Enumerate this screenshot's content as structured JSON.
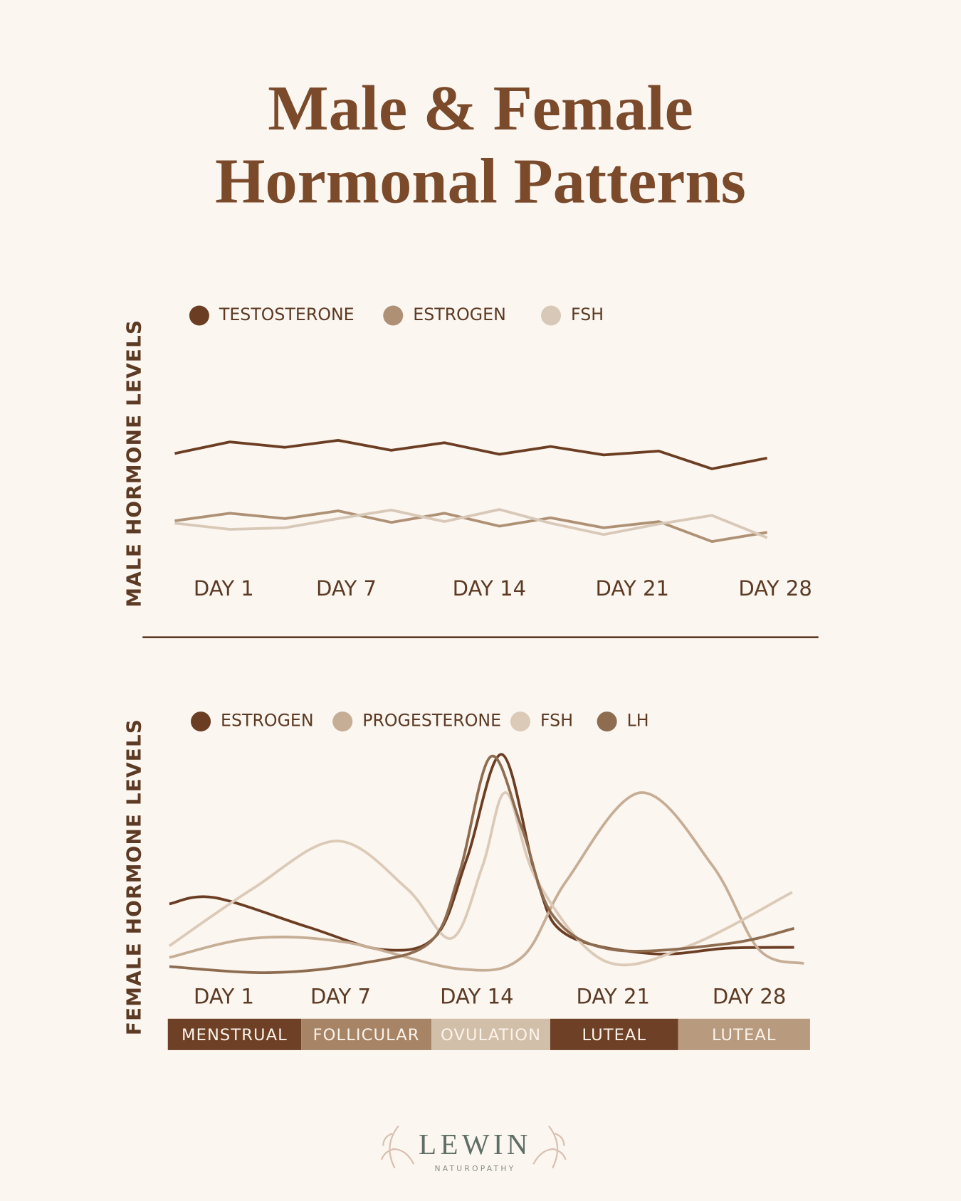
{
  "title": [
    "Male & Female",
    "Hormonal Patterns"
  ],
  "chart_data": [
    {
      "type": "line",
      "y_label": "MALE HORMONE LEVELS",
      "smooth": false,
      "xlim": [
        -1.4,
        28.5
      ],
      "ylim": [
        0,
        100
      ],
      "xticks": [
        {
          "value": 1,
          "label": "DAY 1"
        },
        {
          "value": 7,
          "label": "DAY 7"
        },
        {
          "value": 14,
          "label": "DAY 14"
        },
        {
          "value": 21,
          "label": "DAY 21"
        },
        {
          "value": 28,
          "label": "DAY 28"
        }
      ],
      "x": [
        -1.4,
        1.3,
        4,
        6.6,
        9.2,
        11.8,
        14.5,
        17,
        19.6,
        22.3,
        24.9,
        27.6
      ],
      "series": [
        {
          "name": "TESTOSTERONE",
          "color": "#6b3d22",
          "values": [
            56.9,
            62.7,
            60,
            63.5,
            58.5,
            62.3,
            56.5,
            60.4,
            56.2,
            58.1,
            49.2,
            54.6
          ]
        },
        {
          "name": "ESTROGEN",
          "color": "#ae9175",
          "values": [
            23.1,
            26.9,
            24.2,
            28.1,
            22.3,
            26.9,
            20.4,
            24.6,
            19.6,
            22.7,
            12.7,
            17.3
          ]
        },
        {
          "name": "FSH",
          "color": "#d8c8b8",
          "values": [
            21.9,
            18.8,
            19.6,
            24.2,
            28.5,
            22.7,
            28.8,
            21.9,
            16.2,
            21.5,
            25.8,
            14.6
          ]
        }
      ]
    },
    {
      "type": "line",
      "y_label": "FEMALE HORMONE LEVELS",
      "smooth": true,
      "xlim": [
        -1.8,
        31
      ],
      "ylim": [
        0,
        100
      ],
      "xticks": [
        {
          "value": 1,
          "label": "DAY 1"
        },
        {
          "value": 7,
          "label": "DAY 7"
        },
        {
          "value": 14,
          "label": "DAY 14"
        },
        {
          "value": 21,
          "label": "DAY 21"
        },
        {
          "value": 28,
          "label": "DAY 28"
        }
      ],
      "series": [
        {
          "name": "ESTROGEN",
          "color": "#6b3d22",
          "x": [
            -1.8,
            0.5,
            5.3,
            9.2,
            11.9,
            13.5,
            15.3,
            17.1,
            18.6,
            23,
            26.9,
            30.3
          ],
          "values": [
            33.3,
            35.8,
            24.2,
            15.2,
            20.6,
            51.5,
            92.4,
            42.4,
            21.2,
            13.6,
            15.8,
            16.1
          ]
        },
        {
          "name": "PROGESTERONE",
          "color": "#c6ad95",
          "x": [
            -1.8,
            2.5,
            7.2,
            13.1,
            16.3,
            18.6,
            22.4,
            26.1,
            28.5,
            30.8
          ],
          "values": [
            12.1,
            19.7,
            18.2,
            7.6,
            12.1,
            42.4,
            77.3,
            48.5,
            15.2,
            9.7
          ]
        },
        {
          "name": "FSH",
          "color": "#dbcab8",
          "x": [
            -1.8,
            2.5,
            6.8,
            10.4,
            12.7,
            14.3,
            15.5,
            17.1,
            20.6,
            24.9,
            30.2
          ],
          "values": [
            16.7,
            39.4,
            58.2,
            39.4,
            19.7,
            48.5,
            77.3,
            42.4,
            10.6,
            16.7,
            37.9
          ]
        },
        {
          "name": "LH",
          "color": "#8e6c50",
          "x": [
            -1.8,
            3.3,
            8,
            11.6,
            13.1,
            14.7,
            16.3,
            17.9,
            21,
            26.9,
            30.3
          ],
          "values": [
            8.5,
            6.1,
            9.7,
            18.2,
            45.5,
            91.5,
            63.6,
            28.8,
            15.2,
            17.6,
            23.6
          ]
        }
      ]
    }
  ],
  "phases": [
    {
      "label": "MENSTRUAL",
      "color": "#6e4126"
    },
    {
      "label": "FOLLICULAR",
      "color": "#a78466"
    },
    {
      "label": "OVULATION",
      "color": "#d2bfa9"
    },
    {
      "label": "LUTEAL",
      "color": "#6e4126"
    },
    {
      "label": "LUTEAL",
      "color": "#b89a7e"
    }
  ],
  "logo": {
    "name": "LEWIN",
    "tagline": "NATUROPATHY"
  }
}
